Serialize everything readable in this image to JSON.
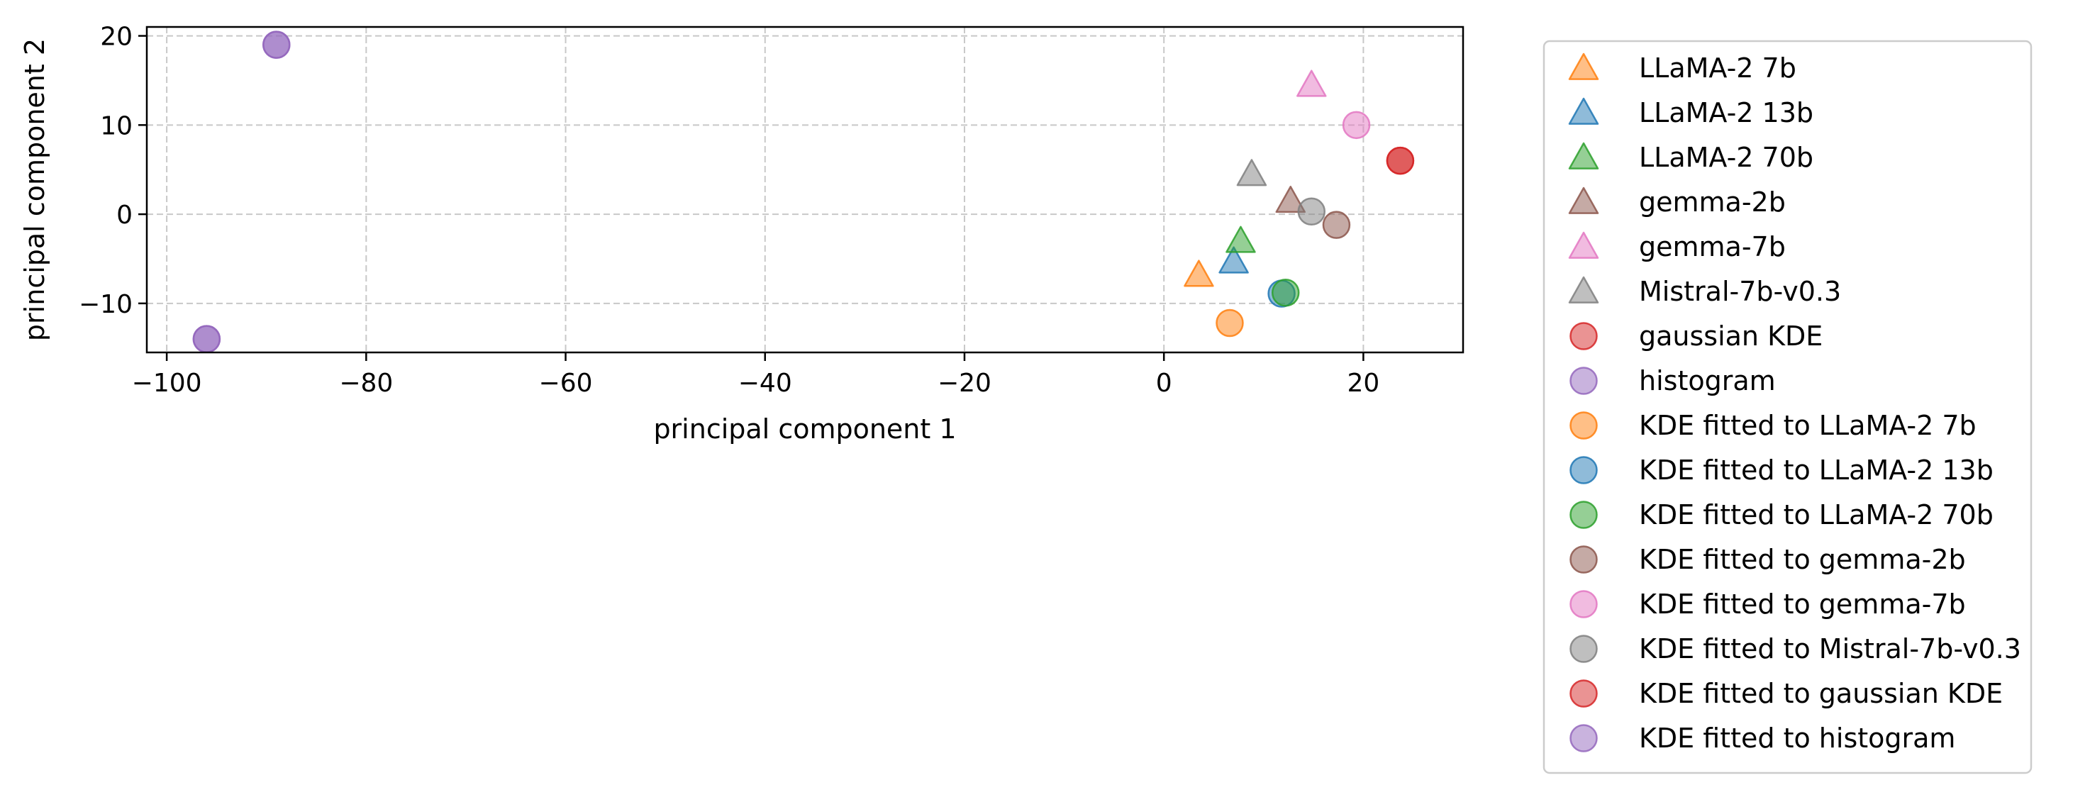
{
  "chart_data": {
    "type": "scatter",
    "title": "",
    "xlabel": "principal component 1",
    "ylabel": "principal component 2",
    "xlim": [
      -102,
      30
    ],
    "ylim": [
      -15.5,
      21
    ],
    "xticks": [
      -100,
      -80,
      -60,
      -40,
      -20,
      0,
      20
    ],
    "xtick_labels": [
      "−100",
      "−80",
      "−60",
      "−40",
      "−20",
      "0",
      "20"
    ],
    "yticks": [
      -10,
      0,
      10,
      20
    ],
    "ytick_labels": [
      "−10",
      "0",
      "10",
      "20"
    ],
    "grid": true,
    "legend_placement": "outside-right",
    "series": [
      {
        "name": "LLaMA-2 7b",
        "marker": "triangle",
        "color": "#ff7f0e",
        "x": [
          3.5
        ],
        "y": [
          -6.8
        ]
      },
      {
        "name": "LLaMA-2 13b",
        "marker": "triangle",
        "color": "#1f77b4",
        "x": [
          7.0
        ],
        "y": [
          -5.3
        ]
      },
      {
        "name": "LLaMA-2 70b",
        "marker": "triangle",
        "color": "#2ca02c",
        "x": [
          7.7
        ],
        "y": [
          -3.0
        ]
      },
      {
        "name": "gemma-2b",
        "marker": "triangle",
        "color": "#8c564b",
        "x": [
          12.7
        ],
        "y": [
          1.5
        ]
      },
      {
        "name": "gemma-7b",
        "marker": "triangle",
        "color": "#e377c2",
        "x": [
          14.8
        ],
        "y": [
          14.5
        ]
      },
      {
        "name": "Mistral-7b-v0.3",
        "marker": "triangle",
        "color": "#7f7f7f",
        "x": [
          8.8
        ],
        "y": [
          4.5
        ]
      },
      {
        "name": "gaussian KDE",
        "marker": "circle",
        "color": "#d62728",
        "x": [
          23.7
        ],
        "y": [
          6.0
        ]
      },
      {
        "name": "histogram",
        "marker": "circle",
        "color": "#9467bd",
        "x": [
          -89.0,
          -96.0
        ],
        "y": [
          19.0,
          -14.0
        ]
      },
      {
        "name": "KDE fitted to LLaMA-2 7b",
        "marker": "circle",
        "color": "#ff7f0e",
        "x": [
          6.6
        ],
        "y": [
          -12.2
        ]
      },
      {
        "name": "KDE fitted to LLaMA-2 13b",
        "marker": "circle",
        "color": "#1f77b4",
        "x": [
          11.8
        ],
        "y": [
          -8.9
        ]
      },
      {
        "name": "KDE fitted to LLaMA-2 70b",
        "marker": "circle",
        "color": "#2ca02c",
        "x": [
          12.2
        ],
        "y": [
          -8.8
        ]
      },
      {
        "name": "KDE fitted to gemma-2b",
        "marker": "circle",
        "color": "#8c564b",
        "x": [
          17.3
        ],
        "y": [
          -1.2
        ]
      },
      {
        "name": "KDE fitted to gemma-7b",
        "marker": "circle",
        "color": "#e377c2",
        "x": [
          19.3
        ],
        "y": [
          10.0
        ]
      },
      {
        "name": "KDE fitted to Mistral-7b-v0.3",
        "marker": "circle",
        "color": "#7f7f7f",
        "x": [
          14.8
        ],
        "y": [
          0.3
        ]
      },
      {
        "name": "KDE fitted to gaussian KDE",
        "marker": "circle",
        "color": "#d62728",
        "x": [
          23.7
        ],
        "y": [
          6.0
        ]
      },
      {
        "name": "KDE fitted to histogram",
        "marker": "circle",
        "color": "#9467bd",
        "x": [
          -89.0,
          -96.0
        ],
        "y": [
          19.0,
          -14.0
        ]
      }
    ]
  }
}
